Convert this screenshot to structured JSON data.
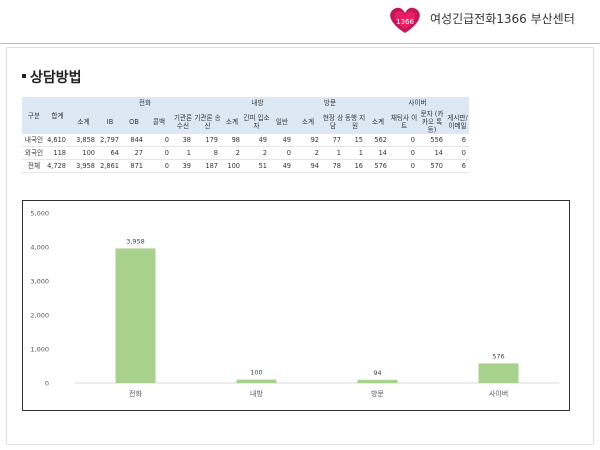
{
  "header": {
    "org_name": "여성긴급전화1366 부산센터"
  },
  "section": {
    "title": "상담방법"
  },
  "table": {
    "col_label": "구분",
    "col_total": "합계",
    "groups": [
      "전화",
      "내방",
      "방문",
      "사이버"
    ],
    "sub": {
      "phone": [
        "소계",
        "IB",
        "OB",
        "콜백",
        "기관론 수신",
        "기관론 송신"
      ],
      "visit_in": [
        "소계",
        "긴피 입소자",
        "일반"
      ],
      "visit_out": [
        "소계",
        "현장 상담",
        "동행 지원"
      ],
      "cyber": [
        "소계",
        "채팅사 이트",
        "문자 (카카오 톡등)",
        "게시판/ 이메일"
      ]
    },
    "rows": [
      {
        "label": "내국인",
        "values": [
          "4,610",
          "3,858",
          "2,797",
          "844",
          "0",
          "38",
          "179",
          "98",
          "49",
          "49",
          "92",
          "77",
          "15",
          "562",
          "0",
          "556",
          "6"
        ]
      },
      {
        "label": "외국인",
        "values": [
          "118",
          "100",
          "64",
          "27",
          "0",
          "1",
          "8",
          "2",
          "2",
          "0",
          "2",
          "1",
          "1",
          "14",
          "0",
          "14",
          "0"
        ]
      },
      {
        "label": "전체",
        "values": [
          "4,728",
          "3,958",
          "2,861",
          "871",
          "0",
          "39",
          "187",
          "100",
          "51",
          "49",
          "94",
          "78",
          "16",
          "576",
          "0",
          "570",
          "6"
        ]
      }
    ]
  },
  "chart_data": {
    "type": "bar",
    "categories": [
      "전화",
      "내방",
      "방문",
      "사이버"
    ],
    "values": [
      3958,
      100,
      94,
      576
    ],
    "data_labels": [
      "3,958",
      "100",
      "94",
      "576"
    ],
    "yticks": [
      "0",
      "1,000",
      "2,000",
      "3,000",
      "4,000",
      "5,000"
    ],
    "ylim": [
      0,
      5000
    ],
    "bar_color": "#a9d18e",
    "grid": false,
    "legend": "none"
  }
}
